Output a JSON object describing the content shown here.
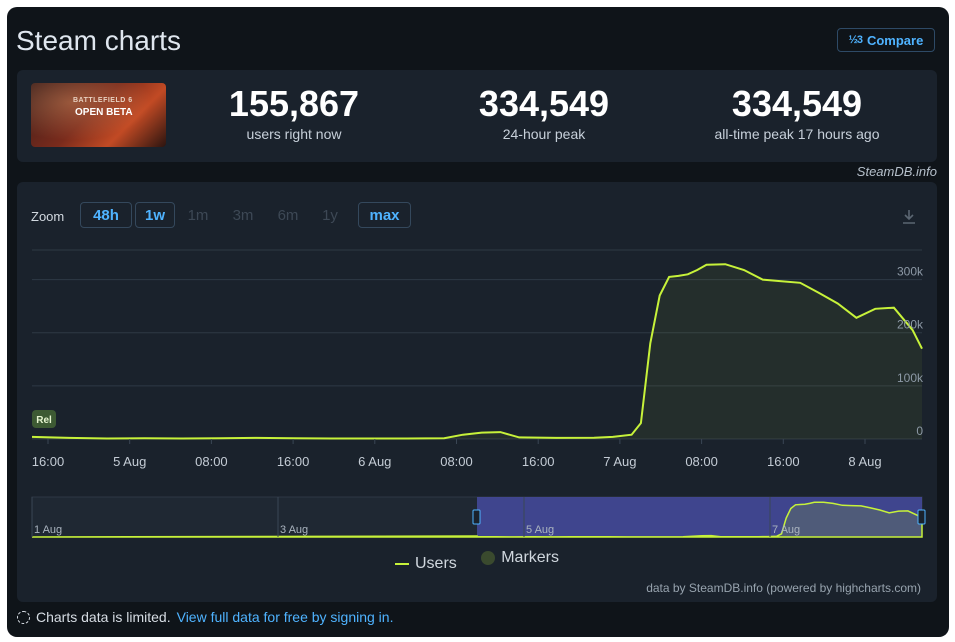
{
  "page": {
    "title": "Steam charts"
  },
  "compare": {
    "label": "Compare",
    "icon": "fraction-icon"
  },
  "game": {
    "thumb_line1": "BATTLEFIELD 6",
    "thumb_line2": "OPEN BETA"
  },
  "stats": [
    {
      "value": "155,867",
      "label": "users right now"
    },
    {
      "value": "334,549",
      "label": "24-hour peak"
    },
    {
      "value": "334,549",
      "label": "all-time peak 17 hours ago"
    }
  ],
  "watermark": "SteamDB.info",
  "zoom": {
    "label": "Zoom",
    "options": [
      {
        "label": "48h",
        "active": true
      },
      {
        "label": "1w",
        "active": true
      },
      {
        "label": "1m",
        "active": false
      },
      {
        "label": "3m",
        "active": false
      },
      {
        "label": "6m",
        "active": false
      },
      {
        "label": "1y",
        "active": false
      },
      {
        "label": "max",
        "active": true
      }
    ]
  },
  "legend": {
    "users": "Users",
    "markers": "Markers"
  },
  "credit": "data by SteamDB.info (powered by highcharts.com)",
  "footer": {
    "text": "Charts data is limited.",
    "link": "View full data for free by signing in."
  },
  "colors": {
    "line": "#c7f23a",
    "accent": "#4fb3ff",
    "panel": "#1a222c",
    "background": "#0f1419"
  },
  "chart_data": {
    "type": "line",
    "title": "",
    "series": [
      {
        "name": "Users",
        "x_hours": [
          0,
          4,
          8,
          12,
          16,
          20,
          24,
          28,
          32,
          36,
          40,
          44,
          46,
          48,
          50,
          52,
          56,
          60,
          62,
          64,
          65,
          66,
          67,
          68,
          69,
          70,
          71,
          72,
          74,
          76,
          78,
          80,
          82,
          84,
          86,
          88,
          90,
          92,
          94,
          95
        ],
        "values": [
          4000,
          2000,
          1000,
          1500,
          1000,
          1500,
          2000,
          1500,
          1000,
          1000,
          1000,
          1500,
          8000,
          12000,
          13000,
          3000,
          2000,
          2500,
          4000,
          8000,
          30000,
          180000,
          270000,
          305000,
          307000,
          310000,
          318000,
          328000,
          329000,
          318000,
          300000,
          297000,
          294000,
          275000,
          255000,
          228000,
          245000,
          247000,
          205000,
          170000
        ]
      }
    ],
    "x_ticks": [
      "16:00",
      "5 Aug",
      "08:00",
      "16:00",
      "6 Aug",
      "08:00",
      "16:00",
      "7 Aug",
      "08:00",
      "16:00",
      "8 Aug"
    ],
    "y_ticks": [
      "0",
      "100k",
      "200k",
      "300k"
    ],
    "ylim": [
      0,
      350000
    ],
    "marker": {
      "label": "Rel"
    },
    "navigator": {
      "labels": [
        "1 Aug",
        "3 Aug",
        "5 Aug",
        "7 Aug"
      ]
    },
    "grid": true,
    "legend_position": "bottom-center"
  }
}
